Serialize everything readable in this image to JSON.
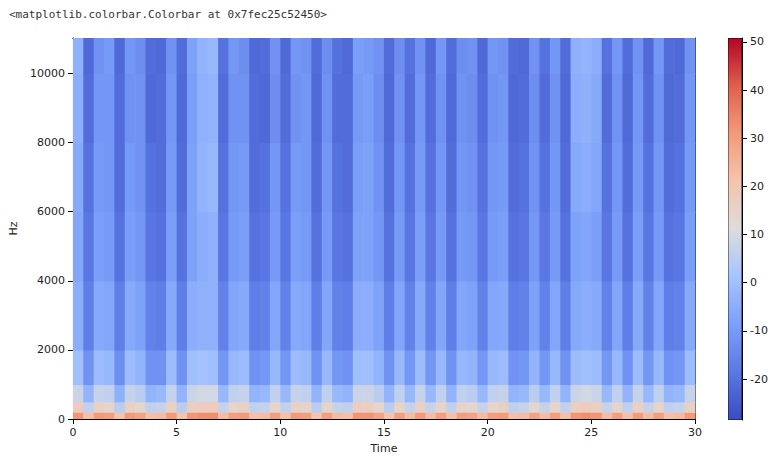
{
  "chart_data": {
    "type": "heatmap",
    "annotation": "<matplotlib.colorbar.Colorbar at 0x7fec25c52450>",
    "x_label": "Time",
    "y_label": "Hz",
    "xlim": [
      0,
      30
    ],
    "xticks": [
      0,
      5,
      10,
      15,
      20,
      25,
      30
    ],
    "ylim": [
      0,
      11025
    ],
    "yticks": [
      0,
      2000,
      4000,
      6000,
      8000,
      10000
    ],
    "grid": false,
    "x_edges": [
      0,
      0.5,
      1,
      1.5,
      2,
      2.5,
      3,
      3.5,
      4,
      4.5,
      5,
      5.5,
      6,
      6.5,
      7,
      7.5,
      8,
      8.5,
      9,
      9.5,
      10,
      10.5,
      11,
      11.5,
      12,
      12.5,
      13,
      13.5,
      14,
      14.5,
      15,
      15.5,
      16,
      16.5,
      17,
      17.5,
      18,
      18.5,
      19,
      19.5,
      20,
      20.5,
      21,
      21.5,
      22,
      22.5,
      23,
      23.5,
      24,
      24.5,
      25,
      25.5,
      26,
      26.5,
      27,
      27.5,
      28,
      28.5,
      29,
      29.5,
      30
    ],
    "y_edges": [
      0,
      200,
      500,
      1000,
      2000,
      4000,
      6000,
      8000,
      10000,
      11025
    ],
    "cells": [
      [
        32,
        22,
        31,
        30,
        21,
        31,
        29,
        22,
        23,
        31,
        21,
        32,
        33,
        33,
        23,
        30,
        31,
        22,
        23,
        30,
        22,
        31,
        30,
        21,
        30,
        23,
        22,
        32,
        32,
        29,
        21,
        30,
        23,
        31,
        23,
        30,
        22,
        30,
        29,
        23,
        30,
        31,
        22,
        23,
        29,
        23,
        30,
        22,
        32,
        33,
        32,
        23,
        30,
        22,
        31,
        23,
        30,
        22,
        23,
        31
      ],
      [
        18,
        6,
        16,
        15,
        5,
        16,
        14,
        6,
        7,
        16,
        5,
        17,
        18,
        18,
        7,
        15,
        16,
        6,
        7,
        15,
        6,
        16,
        15,
        5,
        15,
        7,
        6,
        17,
        17,
        14,
        5,
        15,
        7,
        16,
        7,
        15,
        6,
        15,
        14,
        7,
        15,
        16,
        6,
        7,
        14,
        7,
        15,
        6,
        17,
        18,
        17,
        7,
        15,
        6,
        16,
        7,
        15,
        6,
        7,
        16
      ],
      [
        8,
        -3,
        7,
        6,
        -4,
        7,
        5,
        -3,
        -2,
        7,
        -3,
        8,
        9,
        9,
        -2,
        6,
        7,
        -3,
        -2,
        6,
        -2,
        7,
        6,
        -3,
        6,
        -2,
        -3,
        8,
        8,
        5,
        -3,
        6,
        -2,
        7,
        -2,
        6,
        -3,
        6,
        5,
        -2,
        6,
        7,
        -3,
        -2,
        5,
        -2,
        6,
        -3,
        8,
        9,
        8,
        -2,
        6,
        -3,
        7,
        -2,
        6,
        -3,
        -2,
        7
      ],
      [
        0,
        -12,
        -1,
        -2,
        -13,
        -1,
        -3,
        -12,
        -12,
        -1,
        -12,
        0,
        1,
        0,
        -11,
        -2,
        -1,
        -12,
        -11,
        -2,
        -11,
        -1,
        -2,
        -12,
        -2,
        -11,
        -12,
        0,
        0,
        -3,
        -12,
        -2,
        -11,
        -1,
        -11,
        -2,
        -12,
        -2,
        -3,
        -11,
        -2,
        -1,
        -12,
        -11,
        -3,
        -11,
        -2,
        -12,
        -1,
        0,
        -1,
        -11,
        -2,
        -12,
        -1,
        -11,
        -2,
        -12,
        -11,
        -1
      ],
      [
        -5,
        -17,
        -6,
        -7,
        -17,
        -6,
        -8,
        -16,
        -17,
        -6,
        -17,
        -5,
        -4,
        -4,
        -16,
        -7,
        -6,
        -17,
        -16,
        -7,
        -16,
        -6,
        -7,
        -17,
        -7,
        -16,
        -17,
        -5,
        -5,
        -8,
        -17,
        -7,
        -16,
        -6,
        -16,
        -7,
        -17,
        -7,
        -8,
        -16,
        -7,
        -6,
        -17,
        -16,
        -8,
        -16,
        -7,
        -17,
        -6,
        -5,
        -6,
        -16,
        -7,
        -17,
        -6,
        -16,
        -7,
        -17,
        -16,
        -6
      ],
      [
        -7,
        -19,
        -9,
        -10,
        -20,
        -9,
        -11,
        -19,
        -20,
        -9,
        -20,
        -8,
        -5,
        -4,
        -19,
        -10,
        -9,
        -20,
        -19,
        -10,
        -19,
        -9,
        -10,
        -20,
        -10,
        -19,
        -20,
        -8,
        -8,
        -11,
        -20,
        -10,
        -19,
        -9,
        -19,
        -10,
        -20,
        -10,
        -11,
        -19,
        -10,
        -9,
        -20,
        -19,
        -11,
        -19,
        -10,
        -20,
        -8,
        -7,
        -9,
        -19,
        -10,
        -20,
        -9,
        -19,
        -10,
        -20,
        -19,
        -9
      ],
      [
        -6,
        -20,
        -10,
        -11,
        -21,
        -10,
        -12,
        -20,
        -21,
        -10,
        -21,
        -8,
        -3,
        -2,
        -20,
        -11,
        -10,
        -21,
        -20,
        -11,
        -20,
        -10,
        -11,
        -21,
        -11,
        -20,
        -21,
        -9,
        -8,
        -12,
        -21,
        -11,
        -20,
        -10,
        -20,
        -11,
        -21,
        -11,
        -12,
        -20,
        -11,
        -10,
        -21,
        -20,
        -12,
        -20,
        -11,
        -21,
        -6,
        -5,
        -7,
        -20,
        -11,
        -21,
        -10,
        -20,
        -11,
        -21,
        -20,
        -10
      ],
      [
        -5,
        -21,
        -11,
        -11,
        -21,
        -12,
        -12,
        -22,
        -21,
        -11,
        -22,
        -9,
        -4,
        -3,
        -21,
        -12,
        -12,
        -21,
        -22,
        -13,
        -21,
        -12,
        -11,
        -22,
        -12,
        -21,
        -21,
        -10,
        -9,
        -13,
        -22,
        -12,
        -21,
        -11,
        -21,
        -12,
        -22,
        -12,
        -13,
        -21,
        -12,
        -11,
        -22,
        -21,
        -13,
        -21,
        -12,
        -22,
        -5,
        -4,
        -6,
        -21,
        -12,
        -22,
        -11,
        -21,
        -12,
        -22,
        -21,
        -11
      ],
      [
        -4,
        -22,
        -12,
        -10,
        -22,
        -11,
        -13,
        -21,
        -22,
        -12,
        -21,
        -8,
        -3,
        -2,
        -20,
        -11,
        -13,
        -22,
        -21,
        -12,
        -22,
        -11,
        -12,
        -21,
        -13,
        -20,
        -22,
        -9,
        -10,
        -12,
        -21,
        -13,
        -20,
        -12,
        -22,
        -11,
        -21,
        -13,
        -12,
        -22,
        -11,
        -12,
        -21,
        -22,
        -12,
        -20,
        -11,
        -21,
        -4,
        -3,
        -5,
        -20,
        -11,
        -21,
        -12,
        -22,
        -11,
        -21,
        -22,
        -12
      ]
    ],
    "colorbar": {
      "range": [
        -28.5,
        50.8
      ],
      "ticks": [
        -20,
        -10,
        0,
        10,
        20,
        30,
        40,
        50
      ]
    }
  }
}
